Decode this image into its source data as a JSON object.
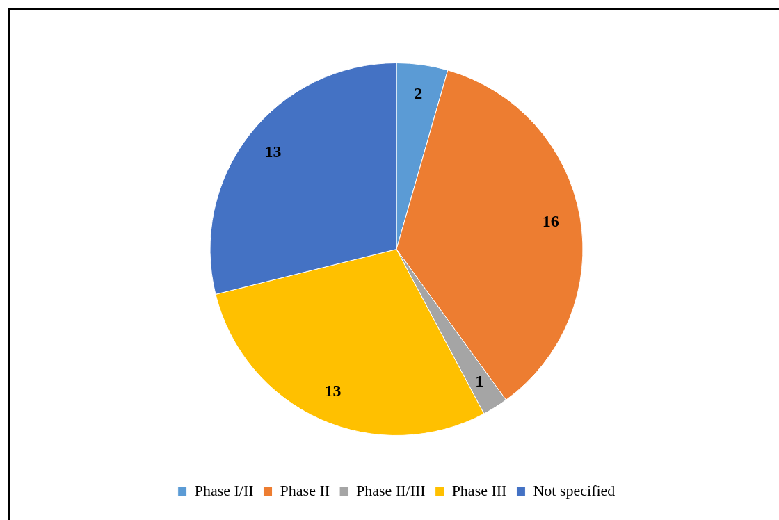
{
  "chart_data": {
    "type": "pie",
    "categories": [
      "Phase I/II",
      "Phase II",
      "Phase II/III",
      "Phase III",
      "Not specified"
    ],
    "values": [
      2,
      16,
      1,
      13,
      13
    ],
    "colors": [
      "#5b9bd5",
      "#ed7d31",
      "#a5a5a5",
      "#ffc000",
      "#4472c4"
    ],
    "data_labels": true,
    "legend": "bottom"
  }
}
